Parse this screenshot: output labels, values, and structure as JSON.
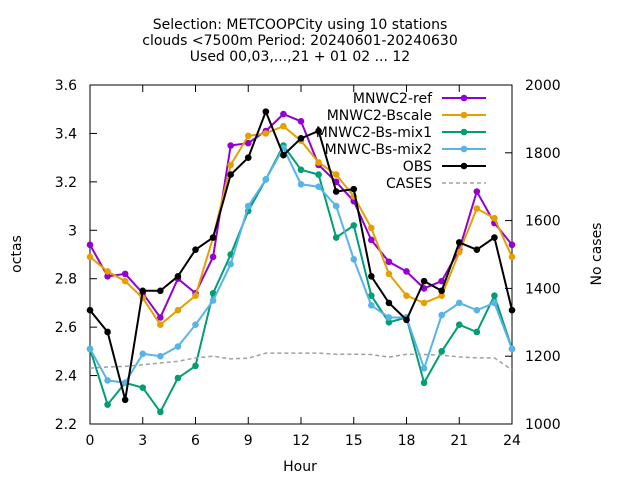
{
  "chart_data": {
    "type": "line",
    "title_lines": [
      "Selection: METCOOPCity using    10 stations",
      "clouds <7500m   Period: 20240601-20240630",
      "Used 00,03,...,21 + 01 02 ... 12"
    ],
    "xlabel": "Hour",
    "ylabel": "octas",
    "y2label": "No cases",
    "xlim": [
      0,
      24
    ],
    "ylim": [
      2.2,
      3.6
    ],
    "y2lim": [
      1000,
      2000
    ],
    "xticks": [
      "0",
      "3",
      "6",
      "9",
      "12",
      "15",
      "18",
      "21",
      "24"
    ],
    "yticks": [
      "2.2",
      "2.4",
      "2.6",
      "2.8",
      "3",
      "3.2",
      "3.4",
      "3.6"
    ],
    "y2ticks": [
      "1000",
      "1200",
      "1400",
      "1600",
      "1800",
      "2000"
    ],
    "grid": false,
    "legend_position": "top-right",
    "x": [
      0,
      1,
      2,
      3,
      4,
      5,
      6,
      7,
      8,
      9,
      10,
      11,
      12,
      13,
      14,
      15,
      16,
      17,
      18,
      19,
      20,
      21,
      22,
      23,
      24
    ],
    "series": [
      {
        "name": "MNWC2-ref",
        "color": "#9400d3",
        "marker": "filled-circle",
        "values": [
          2.94,
          2.81,
          2.82,
          2.74,
          2.64,
          2.8,
          2.74,
          2.89,
          3.35,
          3.36,
          3.41,
          3.48,
          3.45,
          3.27,
          3.2,
          3.12,
          2.96,
          2.87,
          2.83,
          2.76,
          2.79,
          2.92,
          3.16,
          3.03,
          2.94
        ]
      },
      {
        "name": "MNWC2-Bscale",
        "color": "#e69f00",
        "marker": "filled-circle",
        "values": [
          2.89,
          2.83,
          2.79,
          2.72,
          2.61,
          2.67,
          2.73,
          2.97,
          3.27,
          3.39,
          3.4,
          3.43,
          3.37,
          3.28,
          3.23,
          3.14,
          3.01,
          2.82,
          2.73,
          2.7,
          2.73,
          2.91,
          3.09,
          3.05,
          2.89
        ]
      },
      {
        "name": "MNWC2-Bs-mix1",
        "color": "#009e73",
        "marker": "filled-circle",
        "values": [
          2.51,
          2.28,
          2.37,
          2.35,
          2.25,
          2.39,
          2.44,
          2.74,
          2.9,
          3.08,
          3.21,
          3.35,
          3.25,
          3.23,
          2.97,
          3.02,
          2.73,
          2.62,
          2.64,
          2.37,
          2.5,
          2.61,
          2.58,
          2.73,
          2.51
        ]
      },
      {
        "name": "MNWC-Bs-mix2",
        "color": "#56b4e9",
        "marker": "filled-circle",
        "values": [
          2.51,
          2.38,
          2.37,
          2.49,
          2.48,
          2.52,
          2.61,
          2.71,
          2.86,
          3.1,
          3.21,
          3.34,
          3.19,
          3.18,
          3.1,
          2.88,
          2.69,
          2.64,
          2.64,
          2.43,
          2.65,
          2.7,
          2.67,
          2.7,
          2.51
        ]
      },
      {
        "name": "OBS",
        "color": "#000000",
        "marker": "filled-circle",
        "values": [
          2.67,
          2.58,
          2.3,
          2.75,
          2.75,
          2.81,
          2.92,
          2.97,
          3.23,
          3.3,
          3.49,
          3.31,
          3.38,
          3.41,
          3.16,
          3.17,
          2.81,
          2.7,
          2.63,
          2.79,
          2.75,
          2.95,
          2.92,
          2.97,
          2.67
        ]
      },
      {
        "name": "CASES",
        "color": "#a0a0a0",
        "dashed": true,
        "axis": "y2",
        "values": [
          1165,
          1168,
          1170,
          1175,
          1180,
          1185,
          1195,
          1200,
          1192,
          1194,
          1209,
          1209,
          1209,
          1209,
          1206,
          1206,
          1205,
          1197,
          1206,
          1205,
          1203,
          1198,
          1195,
          1195,
          1160
        ]
      }
    ]
  }
}
